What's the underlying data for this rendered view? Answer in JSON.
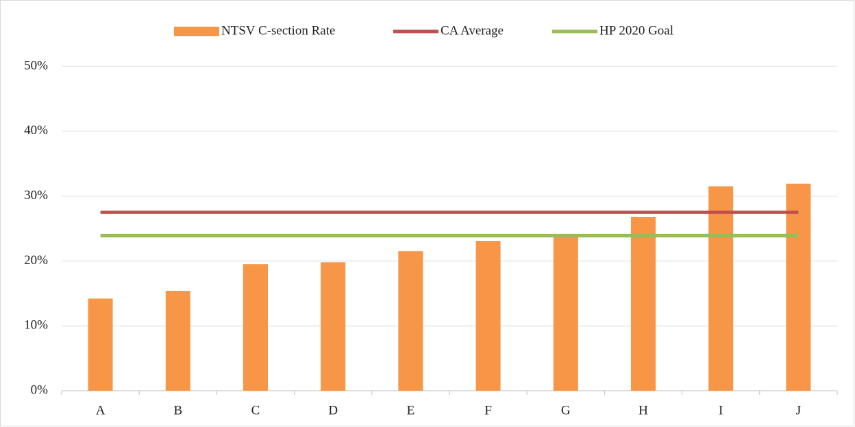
{
  "chart_data": {
    "type": "bar",
    "categories": [
      "A",
      "B",
      "C",
      "D",
      "E",
      "F",
      "G",
      "H",
      "I",
      "J"
    ],
    "series": [
      {
        "name": "NTSV C-section Rate",
        "type": "bar",
        "color": "#f79646",
        "values": [
          14.2,
          15.4,
          19.5,
          19.8,
          21.5,
          23.1,
          23.8,
          26.8,
          31.5,
          31.9
        ]
      },
      {
        "name": "CA Average",
        "type": "line",
        "color": "#c0504d",
        "values": [
          27.5,
          27.5,
          27.5,
          27.5,
          27.5,
          27.5,
          27.5,
          27.5,
          27.5,
          27.5
        ]
      },
      {
        "name": "HP 2020 Goal",
        "type": "line",
        "color": "#9bbb59",
        "values": [
          23.9,
          23.9,
          23.9,
          23.9,
          23.9,
          23.9,
          23.9,
          23.9,
          23.9,
          23.9
        ]
      }
    ],
    "ylim": [
      0,
      50
    ],
    "yticks": [
      {
        "value": 0,
        "label": "0%"
      },
      {
        "value": 10,
        "label": "10%"
      },
      {
        "value": 20,
        "label": "20%"
      },
      {
        "value": 30,
        "label": "30%"
      },
      {
        "value": 40,
        "label": "40%"
      },
      {
        "value": 50,
        "label": "50%"
      }
    ],
    "grid": true,
    "legend": "top"
  }
}
